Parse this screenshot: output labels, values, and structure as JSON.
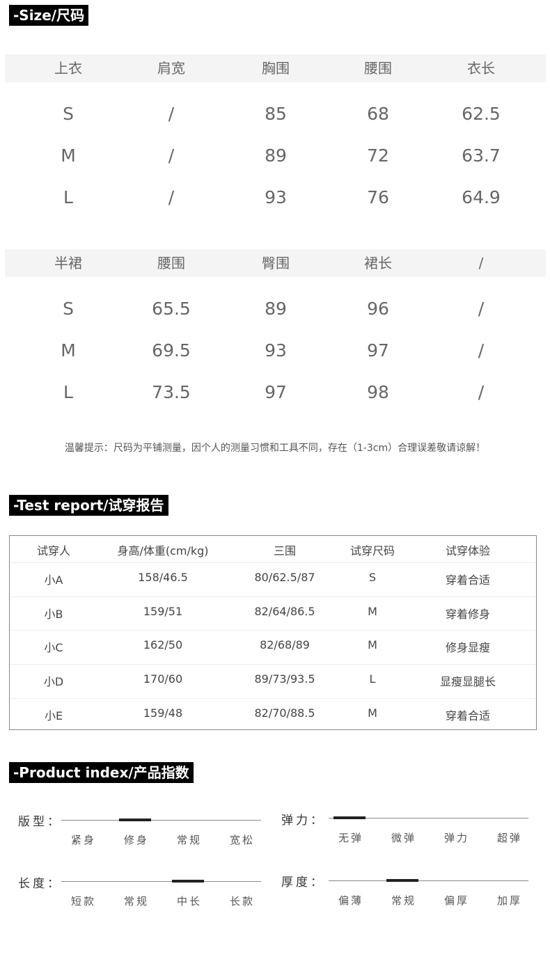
{
  "size_section": {
    "title": "-Size/尺码",
    "tops": {
      "headers": [
        "上衣",
        "肩宽",
        "胸围",
        "腰围",
        "衣长"
      ],
      "rows": [
        [
          "S",
          "/",
          "85",
          "68",
          "62.5"
        ],
        [
          "M",
          "/",
          "89",
          "72",
          "63.7"
        ],
        [
          "L",
          "/",
          "93",
          "76",
          "64.9"
        ]
      ]
    },
    "skirt": {
      "headers": [
        "半裙",
        "腰围",
        "臀围",
        "裙长",
        "/"
      ],
      "rows": [
        [
          "S",
          "65.5",
          "89",
          "96",
          "/"
        ],
        [
          "M",
          "69.5",
          "93",
          "97",
          "/"
        ],
        [
          "L",
          "73.5",
          "97",
          "98",
          "/"
        ]
      ]
    },
    "note": "温馨提示：尺码为平铺测量，因个人的测量习惯和工具不同，存在（1-3cm）合理误差敬请谅解！"
  },
  "test_section": {
    "title": "-Test report/试穿报告",
    "headers": [
      "试穿人",
      "身高/体重(cm/kg)",
      "三围",
      "试穿尺码",
      "试穿体验"
    ],
    "rows": [
      [
        "小A",
        "158/46.5",
        "80/62.5/87",
        "S",
        "穿着合适"
      ],
      [
        "小B",
        "159/51",
        "82/64/86.5",
        "M",
        "穿着修身"
      ],
      [
        "小C",
        "162/50",
        "82/68/89",
        "M",
        "修身显瘦"
      ],
      [
        "小D",
        "170/60",
        "89/73/93.5",
        "L",
        "显瘦显腿长"
      ],
      [
        "小E",
        "159/48",
        "82/70/88.5",
        "M",
        "穿着合适"
      ]
    ]
  },
  "index_section": {
    "title": "-Product index/产品指数",
    "items": [
      {
        "label": "版型：",
        "options": [
          "紧身",
          "修身",
          "常规",
          "宽松"
        ],
        "selected_index": 1
      },
      {
        "label": "弹力：",
        "options": [
          "无弹",
          "微弹",
          "弹力",
          "超弹"
        ],
        "selected_index": 0
      },
      {
        "label": "长度：",
        "options": [
          "短款",
          "常规",
          "中长",
          "长款"
        ],
        "selected_index": 2
      },
      {
        "label": "厚度：",
        "options": [
          "偏薄",
          "常规",
          "偏厚",
          "加厚"
        ],
        "selected_index": 1
      }
    ]
  }
}
